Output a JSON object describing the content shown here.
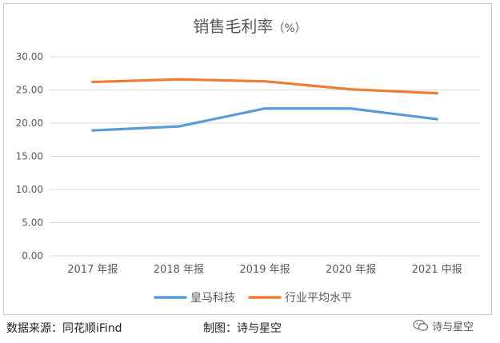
{
  "chart_data": {
    "type": "line",
    "title": "销售毛利率",
    "title_unit": "（%）",
    "categories": [
      "2017 年报",
      "2018 年报",
      "2019 年报",
      "2020 年报",
      "2021 中报"
    ],
    "ylim": [
      0,
      30
    ],
    "yticks": [
      "0.00",
      "5.00",
      "10.00",
      "15.00",
      "20.00",
      "25.00",
      "30.00"
    ],
    "grid": true,
    "legend_position": "bottom",
    "series": [
      {
        "name": "皇马科技",
        "color": "#5b9bd5",
        "values": [
          18.9,
          19.5,
          22.2,
          22.2,
          20.6
        ]
      },
      {
        "name": "行业平均水平",
        "color": "#ed7d31",
        "values": [
          26.2,
          26.6,
          26.3,
          25.1,
          24.5
        ]
      }
    ]
  },
  "footer": {
    "source": "数据来源：同花顺iFind",
    "credit": "制图：诗与星空"
  },
  "watermark": {
    "text": "诗与星空",
    "icon": "wechat-icon"
  }
}
